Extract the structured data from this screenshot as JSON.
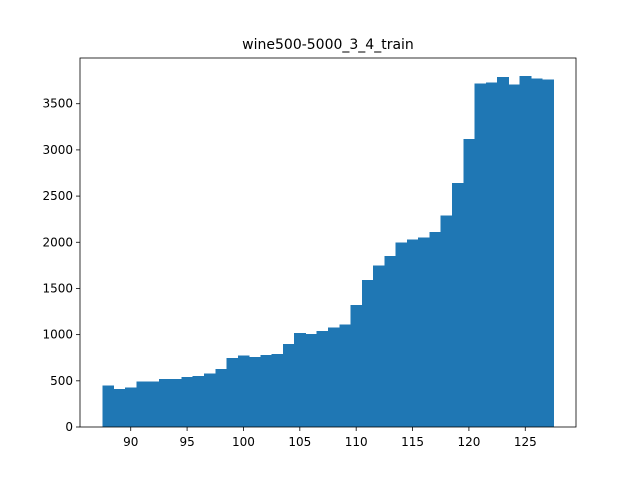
{
  "chart_data": {
    "type": "bar",
    "title": "wine500-5000_3_4_train",
    "xlabel": "",
    "ylabel": "",
    "bar_color": "#1f77b4",
    "bin_start": 87.5,
    "bin_width": 1,
    "values": [
      450,
      410,
      430,
      490,
      490,
      520,
      520,
      540,
      550,
      580,
      630,
      745,
      775,
      760,
      780,
      790,
      900,
      1020,
      1005,
      1040,
      1080,
      1110,
      1320,
      1590,
      1750,
      1850,
      2000,
      2030,
      2050,
      2110,
      2290,
      2640,
      3120,
      3720,
      3730,
      3790,
      3710,
      3800,
      3775,
      3760
    ],
    "xlim": [
      85.5,
      129.5
    ],
    "ylim": [
      0,
      3995
    ],
    "xticks": [
      90,
      95,
      100,
      105,
      110,
      115,
      120,
      125
    ],
    "yticks": [
      0,
      500,
      1000,
      1500,
      2000,
      2500,
      3000,
      3500
    ],
    "grid": false,
    "legend": false
  }
}
